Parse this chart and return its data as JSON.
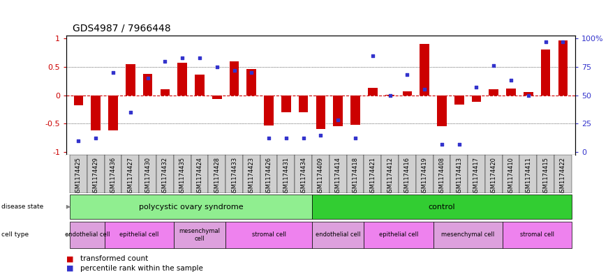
{
  "title": "GDS4987 / 7966448",
  "samples": [
    "GSM1174425",
    "GSM1174429",
    "GSM1174436",
    "GSM1174427",
    "GSM1174430",
    "GSM1174432",
    "GSM1174435",
    "GSM1174424",
    "GSM1174428",
    "GSM1174433",
    "GSM1174423",
    "GSM1174426",
    "GSM1174431",
    "GSM1174434",
    "GSM1174409",
    "GSM1174414",
    "GSM1174418",
    "GSM1174421",
    "GSM1174412",
    "GSM1174416",
    "GSM1174419",
    "GSM1174408",
    "GSM1174413",
    "GSM1174417",
    "GSM1174420",
    "GSM1174410",
    "GSM1174411",
    "GSM1174415",
    "GSM1174422"
  ],
  "bar_values": [
    -0.18,
    -0.62,
    -0.62,
    0.55,
    0.38,
    0.1,
    0.57,
    0.36,
    -0.07,
    0.6,
    0.46,
    -0.53,
    -0.3,
    -0.3,
    -0.6,
    -0.55,
    -0.52,
    0.13,
    0.01,
    0.07,
    0.9,
    -0.55,
    -0.17,
    -0.12,
    0.1,
    0.12,
    0.06,
    0.8,
    0.97
  ],
  "dot_pct": [
    0.1,
    0.12,
    0.7,
    0.35,
    0.65,
    0.8,
    0.83,
    0.83,
    0.75,
    0.72,
    0.7,
    0.12,
    0.12,
    0.12,
    0.15,
    0.28,
    0.12,
    0.85,
    0.5,
    0.68,
    0.55,
    0.07,
    0.07,
    0.57,
    0.76,
    0.63,
    0.5,
    0.97,
    0.97
  ],
  "disease_states": [
    {
      "label": "polycystic ovary syndrome",
      "start": 0,
      "end": 13,
      "color": "#90EE90"
    },
    {
      "label": "control",
      "start": 14,
      "end": 28,
      "color": "#32CD32"
    }
  ],
  "cell_types": [
    {
      "label": "endothelial cell",
      "start": 0,
      "end": 1,
      "color": "#DDA0DD"
    },
    {
      "label": "epithelial cell",
      "start": 2,
      "end": 5,
      "color": "#EE82EE"
    },
    {
      "label": "mesenchymal\ncell",
      "start": 6,
      "end": 8,
      "color": "#DDA0DD"
    },
    {
      "label": "stromal cell",
      "start": 9,
      "end": 13,
      "color": "#EE82EE"
    },
    {
      "label": "endothelial cell",
      "start": 14,
      "end": 16,
      "color": "#DDA0DD"
    },
    {
      "label": "epithelial cell",
      "start": 17,
      "end": 20,
      "color": "#EE82EE"
    },
    {
      "label": "mesenchymal cell",
      "start": 21,
      "end": 24,
      "color": "#DDA0DD"
    },
    {
      "label": "stromal cell",
      "start": 25,
      "end": 28,
      "color": "#EE82EE"
    }
  ],
  "bar_color": "#CC0000",
  "dot_color": "#3333CC",
  "zero_line_color": "#CC0000",
  "grid_line_color": "#000000",
  "tick_box_color": "#D0D0D0",
  "background_color": "#FFFFFF",
  "title_fontsize": 10,
  "tick_fontsize": 6,
  "annotation_fontsize": 8,
  "legend_fontsize": 7.5
}
